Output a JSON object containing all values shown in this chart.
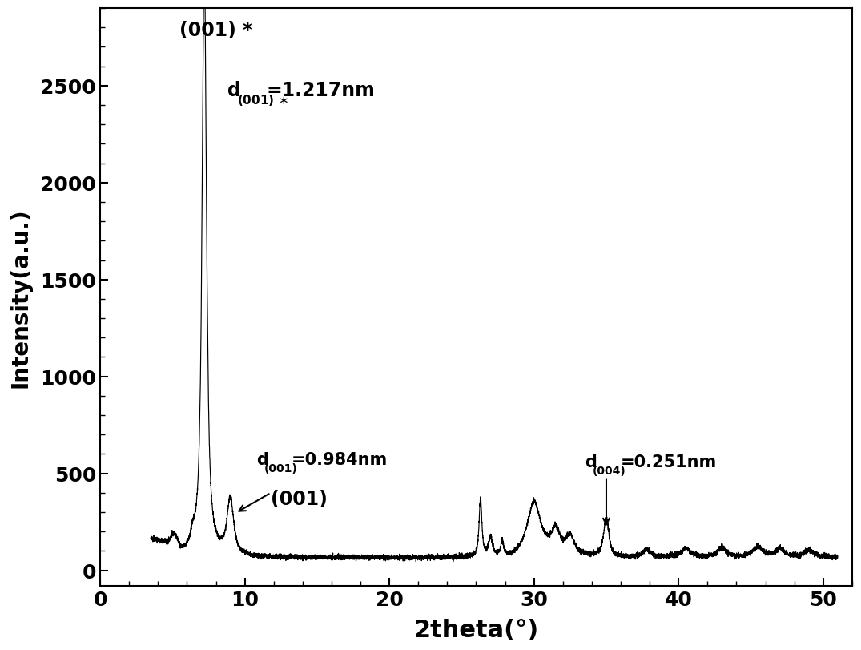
{
  "xlabel": "2theta(°)",
  "ylabel": "Intensity(a.u.)",
  "xlim": [
    0,
    52
  ],
  "ylim": [
    -80,
    2900
  ],
  "xticks": [
    0,
    10,
    20,
    30,
    40,
    50
  ],
  "yticks": [
    0,
    500,
    1000,
    1500,
    2000,
    2500
  ],
  "background_color": "#ffffff",
  "line_color": "#000000",
  "peak1_x": 7.2,
  "peak1_y": 2680,
  "peak2_x": 9.0,
  "peak2_y": 290,
  "peak3_x": 35.0,
  "peak3_y": 195
}
